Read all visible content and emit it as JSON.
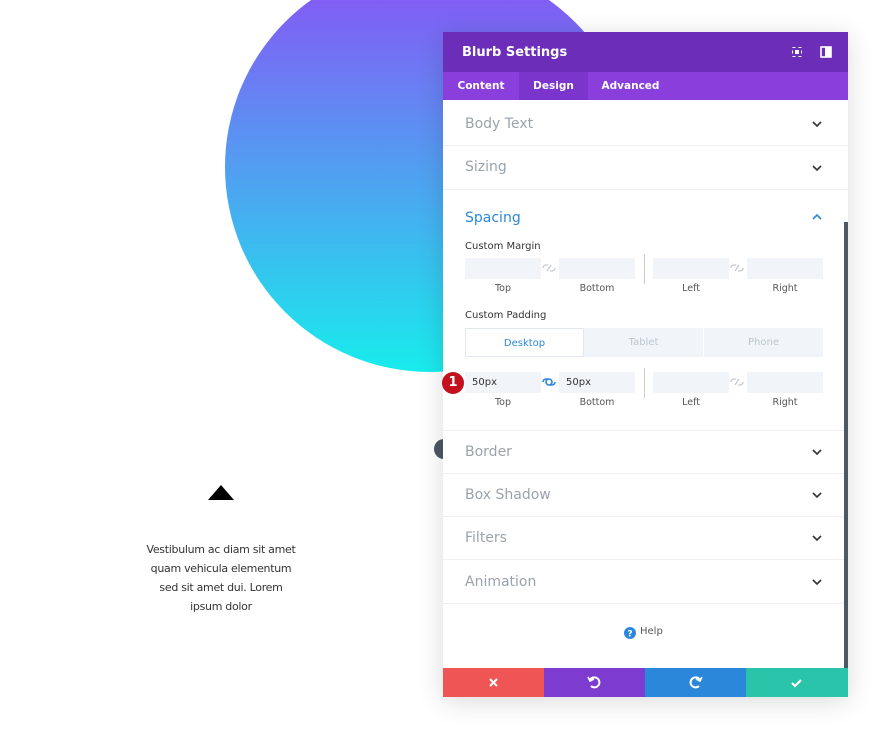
{
  "left_module": {
    "text_lines": [
      "Vestibulum ac diam sit amet",
      "quam vehicula elementum",
      "sed sit amet dui. Lorem",
      "ipsum dolor"
    ]
  },
  "panel": {
    "title": "Blurb Settings",
    "tabs": [
      "Content",
      "Design",
      "Advanced"
    ],
    "sections_before": [
      "Body Text",
      "Sizing"
    ],
    "spacing": {
      "title": "Spacing",
      "margin": {
        "label": "Custom Margin",
        "fields": [
          "Top",
          "Bottom",
          "Left",
          "Right"
        ]
      },
      "padding": {
        "label": "Custom Padding",
        "devices": [
          "Desktop",
          "Tablet",
          "Phone"
        ],
        "values": [
          "50px",
          "50px"
        ],
        "fields": [
          "Top",
          "Bottom",
          "Left",
          "Right"
        ]
      }
    },
    "step_badge": "1",
    "sections_after": [
      "Border",
      "Box Shadow",
      "Filters",
      "Animation"
    ],
    "help": "Help"
  }
}
